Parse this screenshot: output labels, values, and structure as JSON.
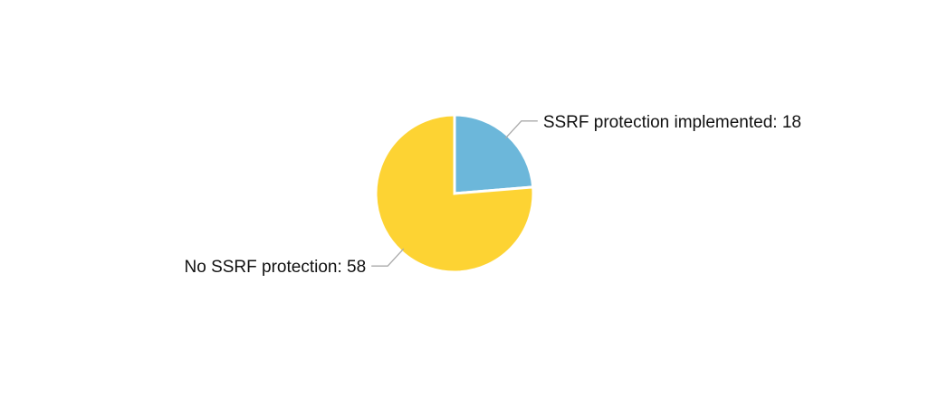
{
  "chart_data": {
    "type": "pie",
    "start_position": "top (12 o'clock), clockwise",
    "slices": [
      {
        "name": "SSRF protection implemented",
        "value": 18,
        "color": "#6cb7da",
        "label": "SSRF protection implemented: 18",
        "label_side": "right"
      },
      {
        "name": "No SSRF protection",
        "value": 58,
        "color": "#fdd333",
        "label": "No SSRF protection: 58",
        "label_side": "left"
      }
    ]
  },
  "colors": {
    "background": "#ffffff",
    "leader_line": "#aaaaaa",
    "label_text": "#111111"
  }
}
